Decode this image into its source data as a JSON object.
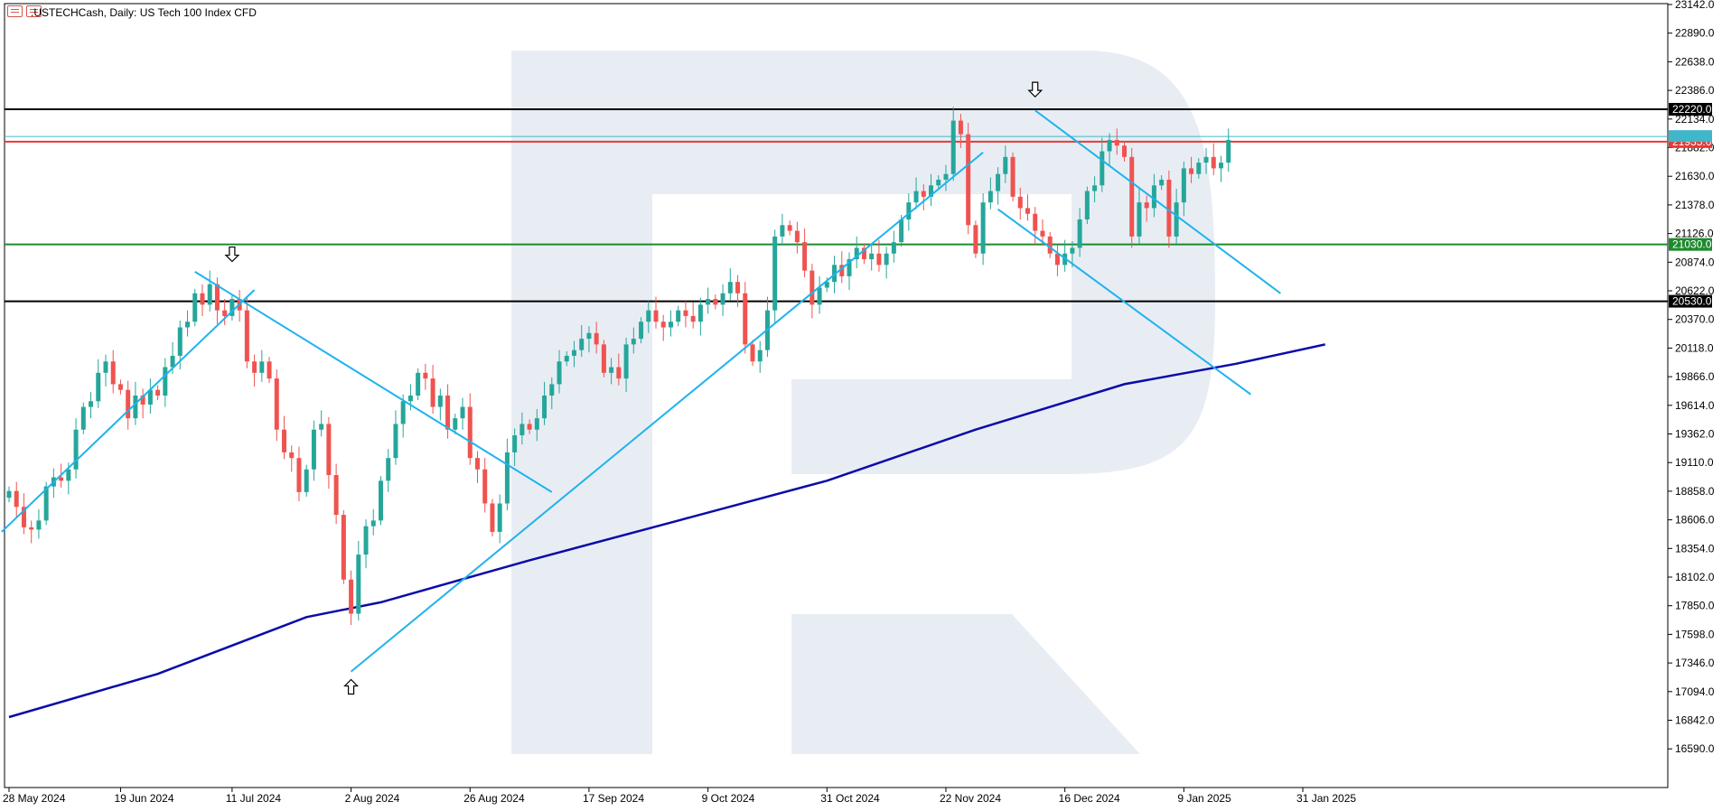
{
  "header": {
    "symbol": ".USTECHCash, Daily:",
    "description": "US Tech 100 Index CFD",
    "icons": [
      "chart-list-icon",
      "chart-bars-icon"
    ]
  },
  "colors": {
    "bull": "#26a69a",
    "bear": "#ef5350",
    "trendline": "#1fb3ee",
    "moving_average": "#0b0ba8",
    "resistance": "#000000",
    "red_level": "#e53935",
    "green_level": "#1e8a2e",
    "current_price": "#3fb6c9",
    "watermark": "#e8edf4"
  },
  "chart_data": {
    "type": "candlestick",
    "title": ".USTECHCash, Daily: US Tech 100 Index CFD",
    "ylim": [
      16350,
      23142
    ],
    "grid": false,
    "y_ticks": [
      "23142.0",
      "22890.0",
      "22638.0",
      "22386.0",
      "22134.0",
      "21882.0",
      "21630.0",
      "21378.0",
      "21126.0",
      "20874.0",
      "20622.0",
      "20370.0",
      "20118.0",
      "19866.0",
      "19614.0",
      "19362.0",
      "19110.0",
      "18858.0",
      "18606.0",
      "18354.0",
      "18102.0",
      "17850.0",
      "17598.0",
      "17346.0",
      "17094.0",
      "16842.0",
      "16590.0"
    ],
    "x_ticks": [
      {
        "label": "28 May 2024",
        "index": 0
      },
      {
        "label": "19 Jun 2024",
        "index": 15
      },
      {
        "label": "11 Jul 2024",
        "index": 30
      },
      {
        "label": "2 Aug 2024",
        "index": 46
      },
      {
        "label": "26 Aug 2024",
        "index": 62
      },
      {
        "label": "17 Sep 2024",
        "index": 78
      },
      {
        "label": "9 Oct 2024",
        "index": 94
      },
      {
        "label": "31 Oct 2024",
        "index": 110
      },
      {
        "label": "22 Nov 2024",
        "index": 126
      },
      {
        "label": "16 Dec 2024",
        "index": 142
      },
      {
        "label": "9 Jan 2025",
        "index": 158
      },
      {
        "label": "31 Jan 2025",
        "index": 174
      }
    ],
    "levels": [
      {
        "name": "resistance-upper",
        "value": 22220.0,
        "label": "22220.0",
        "color": "#000000"
      },
      {
        "name": "current-price",
        "value": 21980.0,
        "label": "",
        "color": "#3fb6c9"
      },
      {
        "name": "level-red",
        "value": 21935.0,
        "label": "21935.0",
        "color": "#e53935"
      },
      {
        "name": "level-green",
        "value": 21030.0,
        "label": "21030.0",
        "color": "#1e8a2e"
      },
      {
        "name": "support-lower",
        "value": 20530.0,
        "label": "20530.0",
        "color": "#000000"
      }
    ],
    "closes": [
      18860,
      18720,
      18540,
      18520,
      18600,
      18900,
      18980,
      18950,
      19050,
      19400,
      19600,
      19650,
      19900,
      20000,
      19800,
      19750,
      19500,
      19700,
      19620,
      19750,
      19700,
      19950,
      20050,
      20300,
      20350,
      20600,
      20500,
      20680,
      20450,
      20400,
      20550,
      20450,
      20000,
      19900,
      20000,
      19850,
      19400,
      19200,
      19150,
      18850,
      19050,
      19400,
      19450,
      19000,
      18650,
      18080,
      17780,
      18300,
      18550,
      18600,
      18950,
      19150,
      19450,
      19650,
      19700,
      19900,
      19850,
      19600,
      19700,
      19400,
      19500,
      19600,
      19150,
      19050,
      18750,
      18500,
      18750,
      19200,
      19350,
      19450,
      19400,
      19500,
      19700,
      19800,
      20000,
      20050,
      20100,
      20200,
      20250,
      20150,
      19900,
      19950,
      19850,
      20150,
      20200,
      20350,
      20450,
      20350,
      20300,
      20350,
      20450,
      20400,
      20350,
      20500,
      20550,
      20500,
      20600,
      20700,
      20600,
      20150,
      20000,
      20100,
      20450,
      21100,
      21200,
      21150,
      21050,
      20800,
      20500,
      20650,
      20700,
      20850,
      20750,
      20900,
      21000,
      20900,
      20950,
      20850,
      20950,
      21050,
      21250,
      21400,
      21500,
      21450,
      21550,
      21600,
      21650,
      22120,
      22000,
      21200,
      20950,
      21400,
      21500,
      21650,
      21800,
      21450,
      21350,
      21300,
      21150,
      21100,
      20950,
      20850,
      20950,
      21000,
      21250,
      21500,
      21550,
      21850,
      21950,
      21900,
      21800,
      21100,
      21400,
      21350,
      21550,
      21600,
      21100,
      21400,
      21700,
      21650,
      21750,
      21800,
      21700,
      21750,
      21950
    ],
    "moving_average": [
      {
        "index": 0,
        "value": 16870
      },
      {
        "index": 20,
        "value": 17250
      },
      {
        "index": 40,
        "value": 17750
      },
      {
        "index": 50,
        "value": 17880
      },
      {
        "index": 70,
        "value": 18250
      },
      {
        "index": 90,
        "value": 18600
      },
      {
        "index": 110,
        "value": 18950
      },
      {
        "index": 130,
        "value": 19400
      },
      {
        "index": 150,
        "value": 19800
      },
      {
        "index": 165,
        "value": 19980
      },
      {
        "index": 177,
        "value": 20150
      }
    ],
    "trendlines": [
      {
        "i1": -1,
        "v1": 18500,
        "i2": 33,
        "v2": 20630
      },
      {
        "i1": 25,
        "v1": 20790,
        "i2": 73,
        "v2": 18850
      },
      {
        "i1": 46,
        "v1": 17270,
        "i2": 131,
        "v2": 21840
      },
      {
        "i1": 138,
        "v1": 22210,
        "i2": 171,
        "v2": 20600
      },
      {
        "i1": 133,
        "v1": 21340,
        "i2": 167,
        "v2": 19710
      }
    ],
    "arrows": [
      {
        "index": 30,
        "direction": "down",
        "value": 20880
      },
      {
        "index": 46,
        "direction": "up",
        "value": 17200
      },
      {
        "index": 138,
        "direction": "down",
        "value": 22330
      }
    ]
  }
}
